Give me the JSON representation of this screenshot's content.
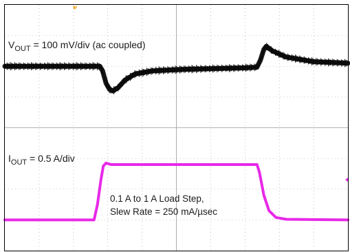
{
  "chart_data": {
    "type": "line",
    "title": "",
    "annotations": {
      "vout_prefix": "V",
      "vout_sub": "OUT",
      "vout_rest": " = 100 mV/div (ac coupled)",
      "iout_prefix": "I",
      "iout_sub": "OUT",
      "iout_rest": " = 0.5 A/div",
      "note_line1": "0.1 A to 1 A Load Step,",
      "note_line2": "Slew Rate = 250 mA/µsec"
    },
    "colors": {
      "vout": "#000000",
      "iout": "#e829e8",
      "grid": "#9a9a9a",
      "frame": "#000000",
      "trigger_marker": "#e8a000"
    },
    "grid": true,
    "divisions": {
      "x": 10,
      "y": 8
    },
    "series": [
      {
        "key": "vout",
        "unit": "div",
        "points": [
          [
            0,
            6.0
          ],
          [
            2.77,
            6.0
          ],
          [
            2.85,
            5.85
          ],
          [
            2.95,
            5.45
          ],
          [
            3.05,
            5.25
          ],
          [
            3.15,
            5.2
          ],
          [
            3.3,
            5.3
          ],
          [
            3.5,
            5.55
          ],
          [
            3.8,
            5.75
          ],
          [
            4.3,
            5.85
          ],
          [
            5.2,
            5.9
          ],
          [
            7.0,
            5.95
          ],
          [
            7.35,
            5.97
          ],
          [
            7.45,
            6.2
          ],
          [
            7.55,
            6.55
          ],
          [
            7.62,
            6.65
          ],
          [
            7.8,
            6.5
          ],
          [
            8.2,
            6.3
          ],
          [
            9.0,
            6.15
          ],
          [
            10.0,
            6.1
          ]
        ]
      },
      {
        "key": "iout",
        "unit": "div",
        "points": [
          [
            0,
            1.0
          ],
          [
            2.6,
            1.0
          ],
          [
            2.7,
            1.5
          ],
          [
            2.8,
            2.3
          ],
          [
            2.87,
            2.75
          ],
          [
            2.95,
            2.85
          ],
          [
            3.1,
            2.8
          ],
          [
            7.35,
            2.8
          ],
          [
            7.42,
            2.55
          ],
          [
            7.55,
            1.8
          ],
          [
            7.7,
            1.3
          ],
          [
            7.9,
            1.08
          ],
          [
            8.2,
            1.02
          ],
          [
            10.0,
            1.0
          ]
        ]
      }
    ]
  }
}
